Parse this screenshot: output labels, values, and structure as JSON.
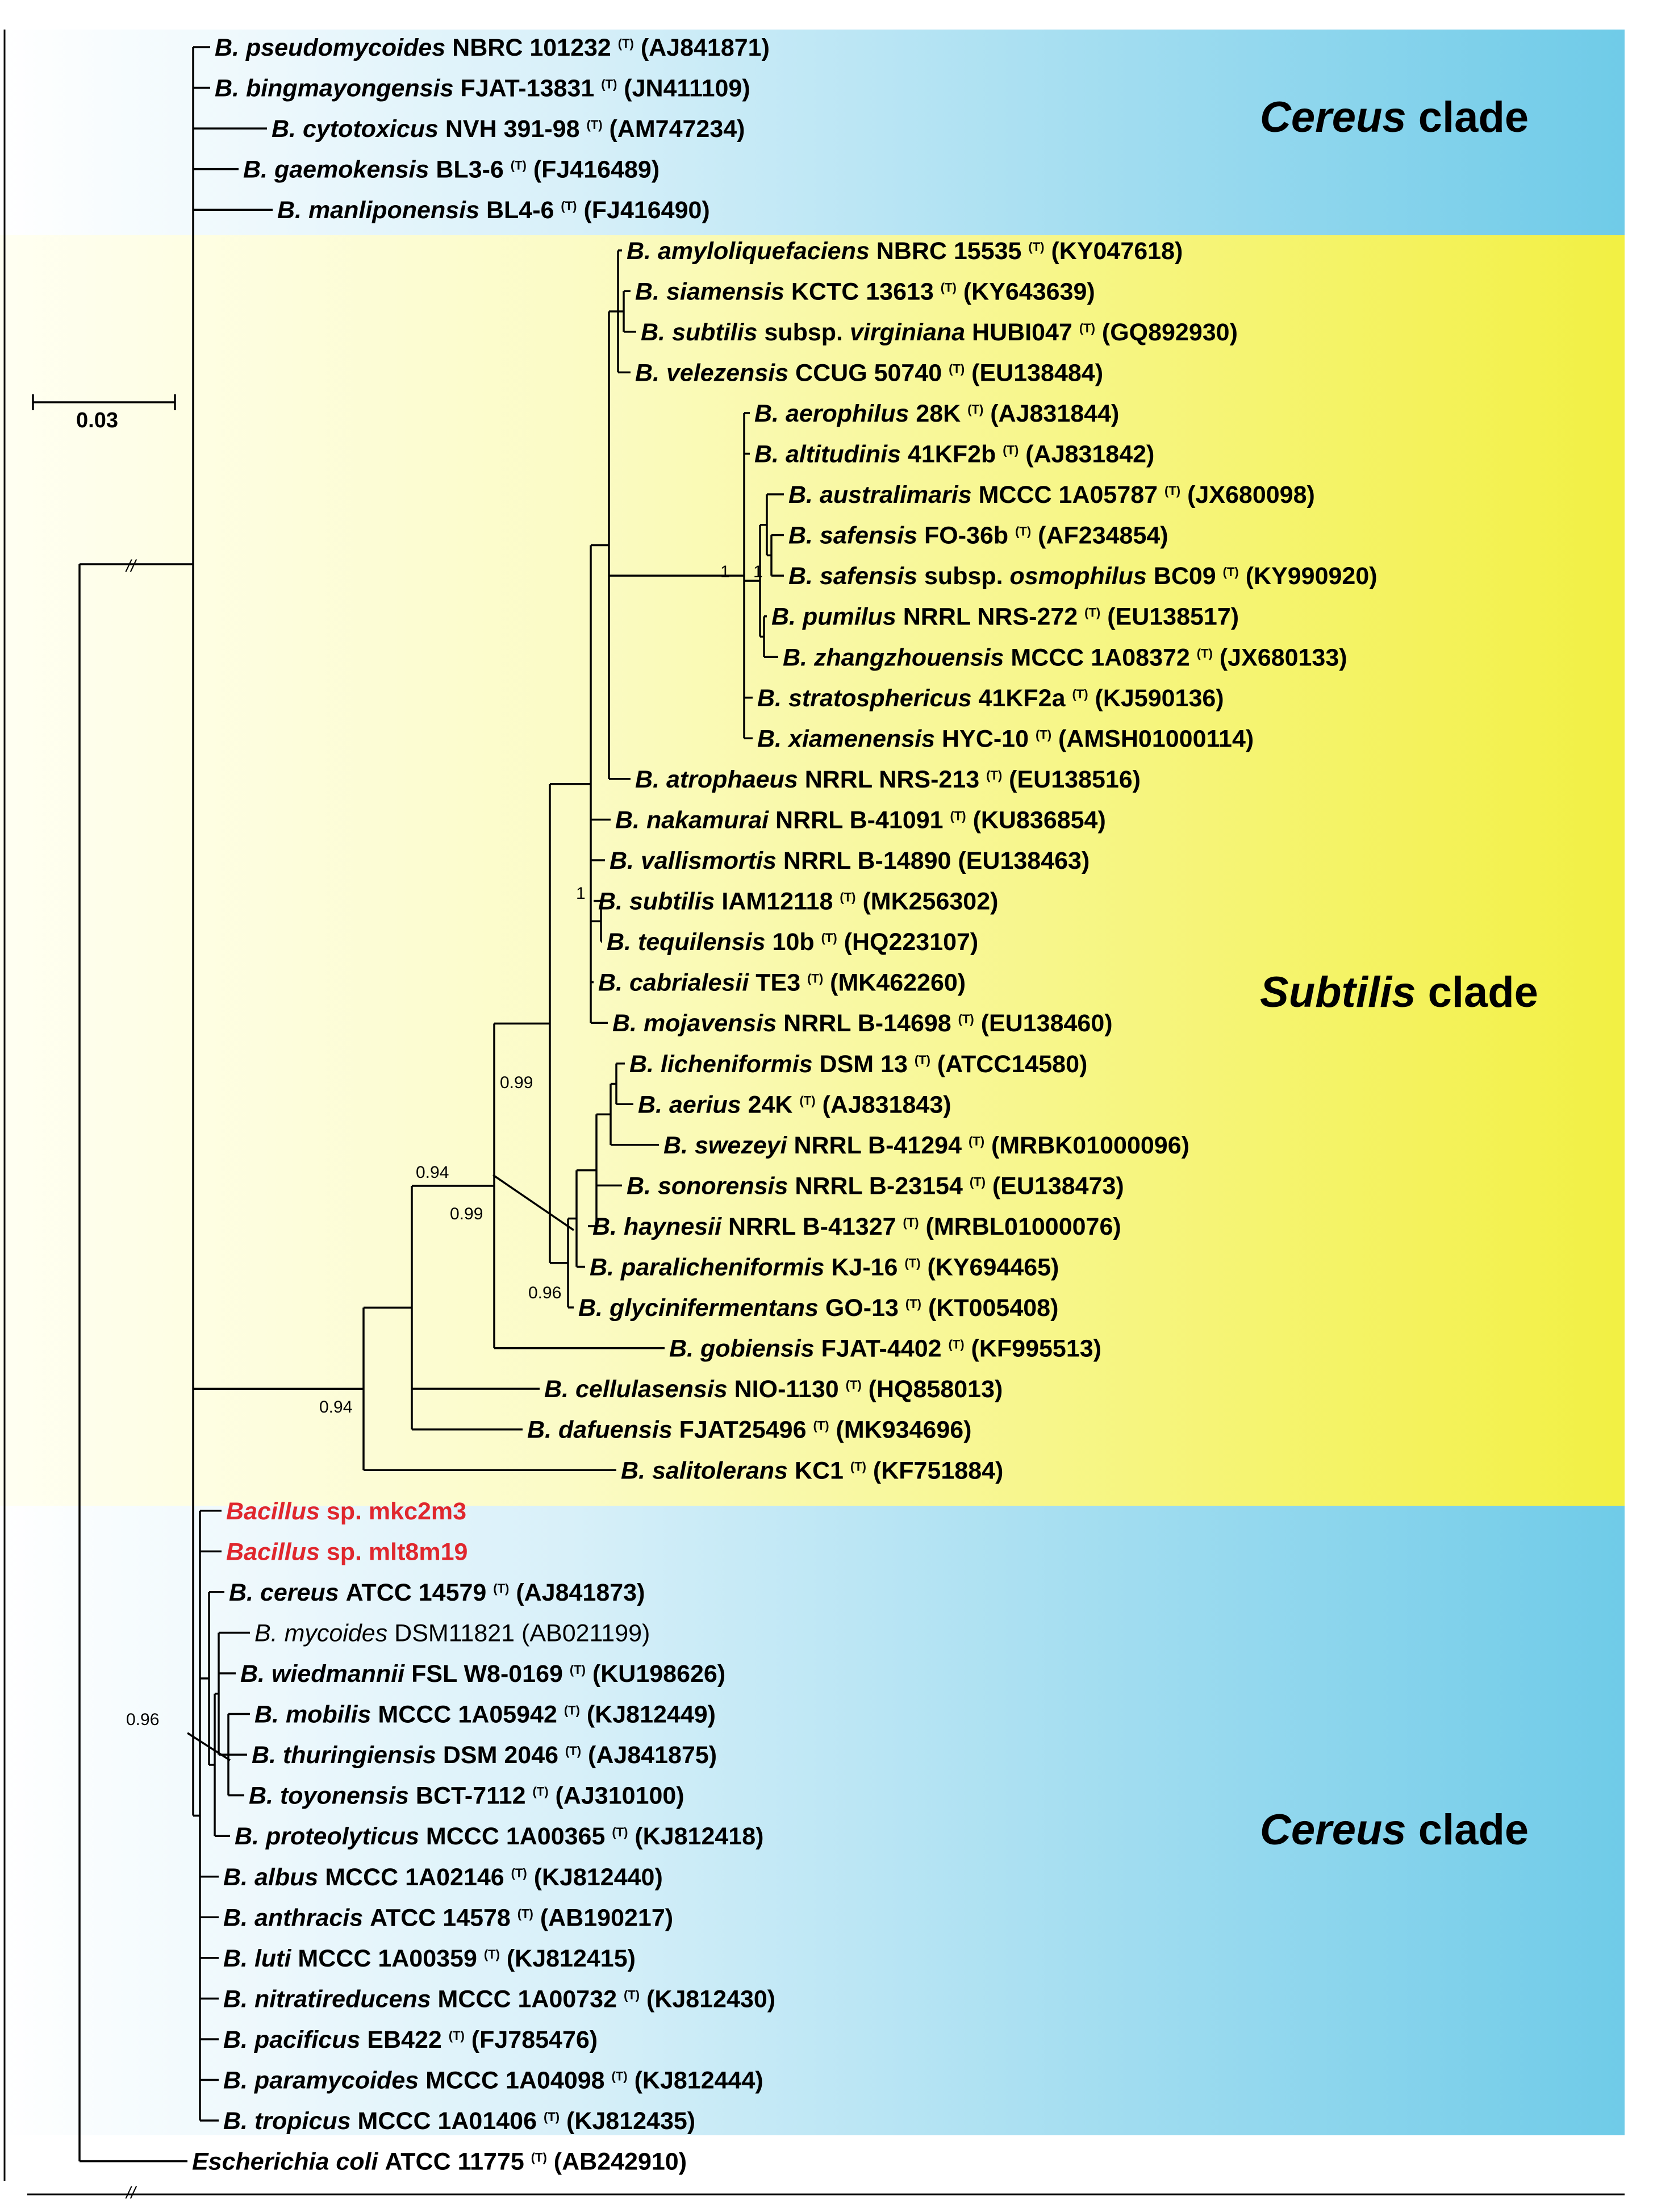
{
  "clades": {
    "cereus_top": {
      "italic": "Cereus",
      "rest": " clade"
    },
    "subtilis": {
      "italic": "Subtilis",
      "rest": " clade"
    },
    "cereus_bottom": {
      "italic": "Cereus",
      "rest": " clade"
    }
  },
  "colors": {
    "cereus": "#6fcbe8",
    "subtilis": "#f2f043",
    "highlight": "#e0272d"
  },
  "scale_bar": {
    "label": "0.03"
  },
  "break_marks": [
    "//",
    "//"
  ],
  "support_values": {
    "n1": "1",
    "n2": "1",
    "n3": "1",
    "n4": "0.99",
    "n5": "0.94",
    "n6": "0.99",
    "n7": "0.96",
    "n8": "0.94",
    "n9": "0.96"
  },
  "taxa": [
    {
      "genus": "B.",
      "species": "pseudomycoides",
      "strain": "NBRC 101232",
      "type": "(T)",
      "acc": "(AJ841871)"
    },
    {
      "genus": "B.",
      "species": "bingmayongensis",
      "strain": "FJAT-13831",
      "type": "(T)",
      "acc": "(JN411109)"
    },
    {
      "genus": "B.",
      "species": "cytotoxicus",
      "strain": "NVH 391-98",
      "type": "(T)",
      "acc": "(AM747234)"
    },
    {
      "genus": "B.",
      "species": "gaemokensis",
      "strain": "BL3-6",
      "type": "(T)",
      "acc": "(FJ416489)"
    },
    {
      "genus": "B.",
      "species": "manliponensis",
      "strain": "BL4-6",
      "type": "(T)",
      "acc": "(FJ416490)"
    },
    {
      "genus": "B.",
      "species": "amyloliquefaciens",
      "strain": "NBRC 15535",
      "type": "(T)",
      "acc": "(KY047618)"
    },
    {
      "genus": "B.",
      "species": "siamensis",
      "strain": "KCTC 13613",
      "type": "(T)",
      "acc": "(KY643639)"
    },
    {
      "genus": "B.",
      "species": "subtilis",
      "mid": "subsp.",
      "sub": "virginiana",
      "strain": "HUBI047",
      "type": "(T)",
      "acc": "(GQ892930)"
    },
    {
      "genus": "B.",
      "species": "velezensis",
      "strain": "CCUG 50740",
      "type": "(T)",
      "acc": "(EU138484)"
    },
    {
      "genus": "B.",
      "species": "aerophilus",
      "strain": "28K",
      "type": "(T)",
      "acc": "(AJ831844)"
    },
    {
      "genus": "B.",
      "species": "altitudinis",
      "strain": "41KF2b",
      "type": "(T)",
      "acc": "(AJ831842)"
    },
    {
      "genus": "B.",
      "species": "australimaris",
      "strain": "MCCC 1A05787",
      "type": "(T)",
      "acc": "(JX680098)"
    },
    {
      "genus": "B.",
      "species": "safensis",
      "strain": "FO-36b",
      "type": "(T)",
      "acc": "(AF234854)"
    },
    {
      "genus": "B.",
      "species": "safensis",
      "mid": "subsp.",
      "sub": "osmophilus",
      "strain": "BC09",
      "type": "(T)",
      "acc": "(KY990920)"
    },
    {
      "genus": "B.",
      "species": "pumilus",
      "strain": "NRRL NRS-272",
      "type": "(T)",
      "acc": "(EU138517)"
    },
    {
      "genus": "B.",
      "species": "zhangzhouensis",
      "strain": "MCCC 1A08372",
      "type": "(T)",
      "acc": "(JX680133)"
    },
    {
      "genus": "B.",
      "species": "stratosphericus",
      "strain": "41KF2a",
      "type": "(T)",
      "acc": "(KJ590136)"
    },
    {
      "genus": "B.",
      "species": "xiamenensis",
      "strain": "HYC-10",
      "type": "(T)",
      "acc": "(AMSH01000114)"
    },
    {
      "genus": "B.",
      "species": "atrophaeus",
      "strain": "NRRL NRS-213",
      "type": "(T)",
      "acc": "(EU138516)"
    },
    {
      "genus": "B.",
      "species": "nakamurai",
      "strain": "NRRL B-41091",
      "type": "(T)",
      "acc": "(KU836854)"
    },
    {
      "genus": "B.",
      "species": "vallismortis",
      "strain": "NRRL B-14890",
      "type": "",
      "acc": "(EU138463)"
    },
    {
      "genus": "B.",
      "species": "subtilis",
      "strain": "IAM12118",
      "type": "(T)",
      "acc": "(MK256302)"
    },
    {
      "genus": "B.",
      "species": "tequilensis",
      "strain": "10b",
      "type": "(T)",
      "acc": "(HQ223107)"
    },
    {
      "genus": "B.",
      "species": "cabrialesii",
      "strain": "TE3",
      "type": "(T)",
      "acc": "(MK462260)"
    },
    {
      "genus": "B.",
      "species": "mojavensis",
      "strain": "NRRL B-14698",
      "type": "(T)",
      "acc": "(EU138460)"
    },
    {
      "genus": "B.",
      "species": "licheniformis",
      "strain": "DSM 13",
      "type": "(T)",
      "acc": "(ATCC14580)"
    },
    {
      "genus": "B.",
      "species": "aerius",
      "strain": "24K",
      "type": "(T)",
      "acc": "(AJ831843)"
    },
    {
      "genus": "B.",
      "species": "swezeyi",
      "strain": "NRRL B-41294",
      "type": "(T)",
      "acc": "(MRBK01000096)"
    },
    {
      "genus": "B.",
      "species": "sonorensis",
      "strain": "NRRL B-23154",
      "type": "(T)",
      "acc": "(EU138473)"
    },
    {
      "genus": "B.",
      "species": "haynesii",
      "strain": "NRRL B-41327",
      "type": "(T)",
      "acc": "(MRBL01000076)"
    },
    {
      "genus": "B.",
      "species": "paralicheniformis",
      "strain": "KJ-16",
      "type": "(T)",
      "acc": "(KY694465)"
    },
    {
      "genus": "B.",
      "species": "glycinifermentans",
      "strain": "GO-13",
      "type": "(T)",
      "acc": "(KT005408)"
    },
    {
      "genus": "B.",
      "species": "gobiensis",
      "strain": "FJAT-4402",
      "type": "(T)",
      "acc": "(KF995513)"
    },
    {
      "genus": "B.",
      "species": "cellulasensis",
      "strain": "NIO-1130",
      "type": "(T)",
      "acc": "(HQ858013)"
    },
    {
      "genus": "B.",
      "species": "dafuensis",
      "strain": "FJAT25496",
      "type": "(T)",
      "acc": "(MK934696)"
    },
    {
      "genus": "B.",
      "species": "salitolerans",
      "strain": "KC1",
      "type": "(T)",
      "acc": "(KF751884)"
    },
    {
      "genus": "Bacillus",
      "species": "",
      "strain": "sp. mkc2m3",
      "type": "",
      "acc": "",
      "style": "red"
    },
    {
      "genus": "Bacillus",
      "species": "",
      "strain": "sp. mlt8m19",
      "type": "",
      "acc": "",
      "style": "red"
    },
    {
      "genus": "B.",
      "species": "cereus",
      "strain": "ATCC 14579",
      "type": "(T)",
      "acc": "(AJ841873)"
    },
    {
      "genus": "B.",
      "species": "mycoides",
      "strain": "DSM11821",
      "type": "",
      "acc": "(AB021199)",
      "style": "plain"
    },
    {
      "genus": "B.",
      "species": "wiedmannii",
      "strain": "FSL W8-0169",
      "type": "(T)",
      "acc": "(KU198626)"
    },
    {
      "genus": "B.",
      "species": "mobilis",
      "strain": "MCCC 1A05942",
      "type": "(T)",
      "acc": "(KJ812449)"
    },
    {
      "genus": "B.",
      "species": "thuringiensis",
      "strain": "DSM 2046",
      "type": "(T)",
      "acc": "(AJ841875)"
    },
    {
      "genus": "B.",
      "species": "toyonensis",
      "strain": "BCT-7112",
      "type": "(T)",
      "acc": "(AJ310100)"
    },
    {
      "genus": "B.",
      "species": "proteolyticus",
      "strain": "MCCC 1A00365",
      "type": "(T)",
      "acc": "(KJ812418)"
    },
    {
      "genus": "B.",
      "species": "albus",
      "strain": "MCCC 1A02146",
      "type": "(T)",
      "acc": "(KJ812440)"
    },
    {
      "genus": "B.",
      "species": "anthracis",
      "strain": "ATCC 14578",
      "type": "(T)",
      "acc": "(AB190217)"
    },
    {
      "genus": "B.",
      "species": "luti",
      "strain": "MCCC 1A00359",
      "type": "(T)",
      "acc": "(KJ812415)"
    },
    {
      "genus": "B.",
      "species": "nitratireducens",
      "strain": "MCCC 1A00732",
      "type": "(T)",
      "acc": "(KJ812430)"
    },
    {
      "genus": "B.",
      "species": "pacificus",
      "strain": "EB422",
      "type": "(T)",
      "acc": "(FJ785476)"
    },
    {
      "genus": "B.",
      "species": "paramycoides",
      "strain": "MCCC 1A04098",
      "type": "(T)",
      "acc": "(KJ812444)"
    },
    {
      "genus": "B.",
      "species": "tropicus",
      "strain": "MCCC 1A01406",
      "type": "(T)",
      "acc": "(KJ812435)"
    },
    {
      "genus": "Escherichia",
      "species": "coli",
      "strain": "ATCC 11775",
      "type": "(T)",
      "acc": "(AB242910)"
    }
  ]
}
